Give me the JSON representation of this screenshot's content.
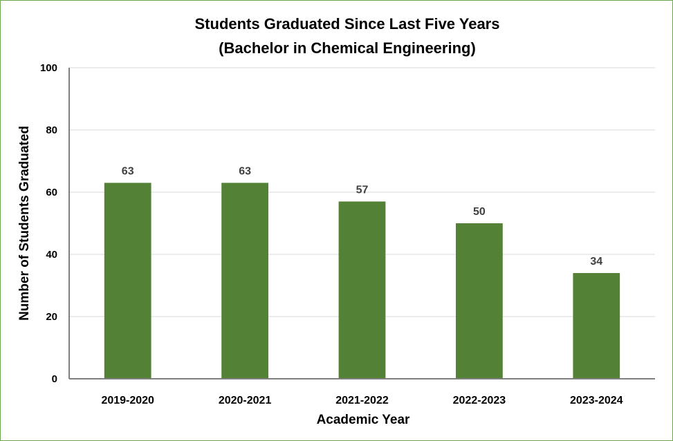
{
  "chart_data": {
    "type": "bar",
    "title": "Students Graduated Since Last Five Years",
    "subtitle": "(Bachelor in Chemical Engineering)",
    "xlabel": "Academic Year",
    "ylabel": "Number of Students Graduated",
    "categories": [
      "2019-2020",
      "2020-2021",
      "2021-2022",
      "2022-2023",
      "2023-2024"
    ],
    "values": [
      63,
      63,
      57,
      50,
      34
    ],
    "data_labels": [
      "63",
      "63",
      "57",
      "50",
      "34"
    ],
    "ylim": [
      0,
      100
    ],
    "yticks": [
      "0",
      "20",
      "40",
      "60",
      "80",
      "100"
    ],
    "grid": true,
    "legend": "none",
    "bar_color": "#538135",
    "gridline_color": "#d9d9d9",
    "axis_color": "#7f7f7f",
    "border_color": "#6aa84f"
  }
}
